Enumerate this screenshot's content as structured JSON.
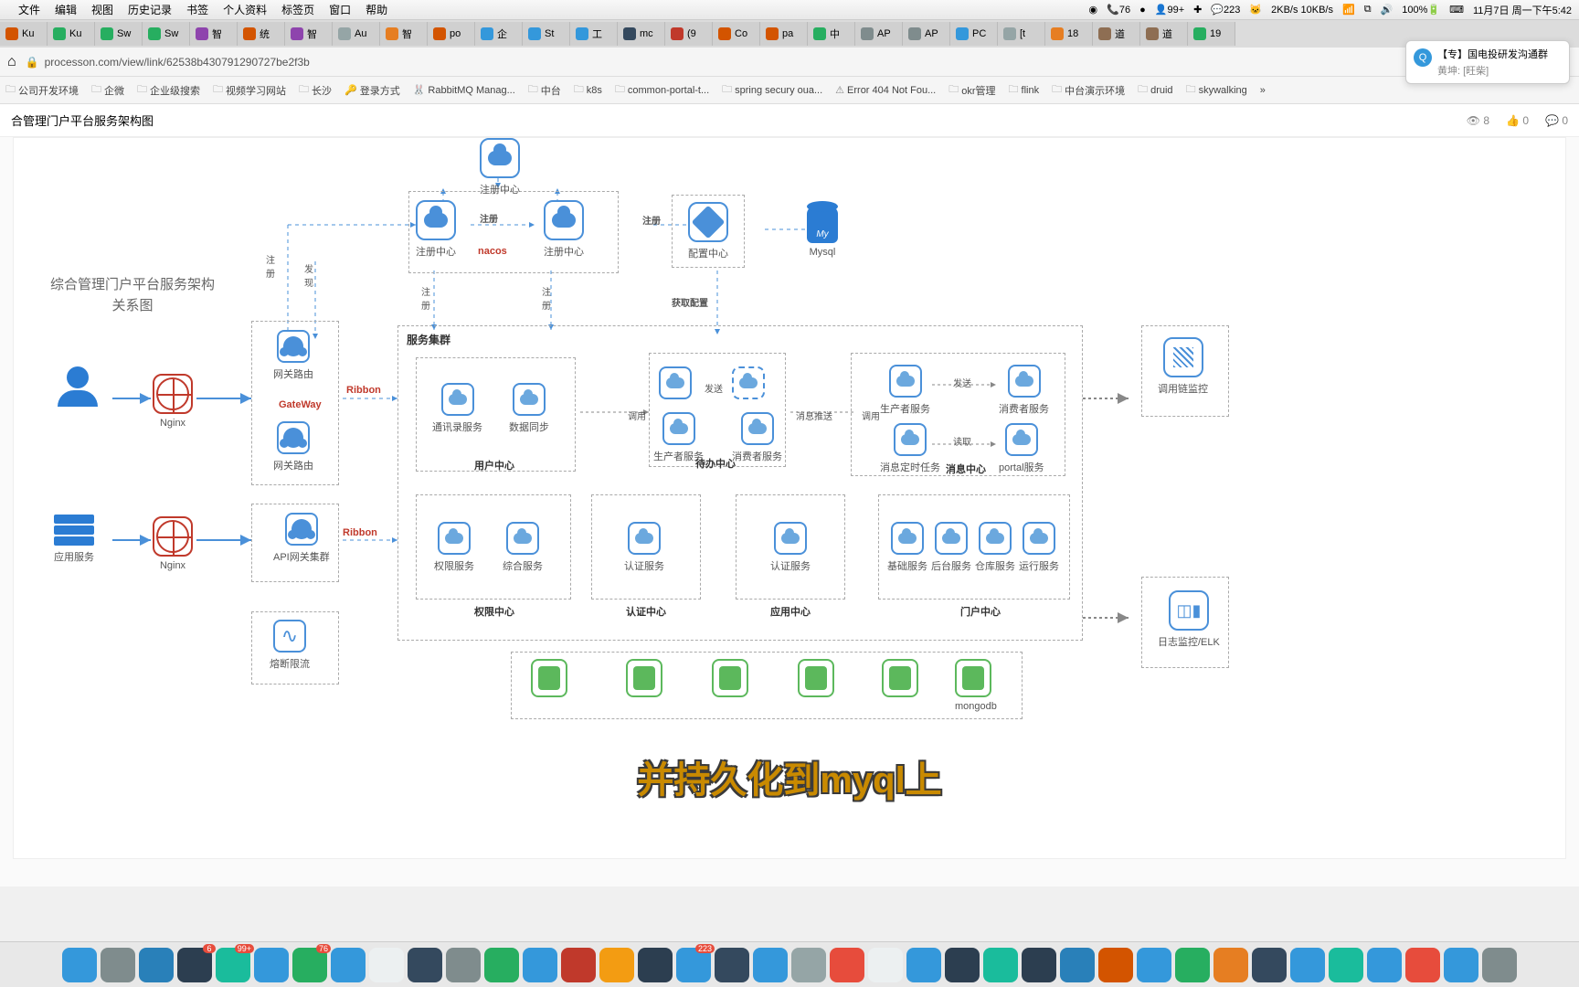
{
  "menubar": {
    "items": [
      "文件",
      "编辑",
      "视图",
      "历史记录",
      "书签",
      "个人资料",
      "标签页",
      "窗口",
      "帮助"
    ],
    "right": {
      "wifi_speed": "2KB/s 10KB/s",
      "battery": "100%",
      "time": "11月7日 周一下午5:42",
      "badge1": "76",
      "badge2": "99+",
      "badge3": "223"
    }
  },
  "tabs": [
    {
      "label": "Ku",
      "color": "#d35400"
    },
    {
      "label": "Ku",
      "color": "#27ae60"
    },
    {
      "label": "Sw",
      "color": "#27ae60"
    },
    {
      "label": "Sw",
      "color": "#27ae60"
    },
    {
      "label": "智",
      "color": "#8e44ad"
    },
    {
      "label": "统",
      "color": "#d35400"
    },
    {
      "label": "智",
      "color": "#8e44ad"
    },
    {
      "label": "Au",
      "color": "#95a5a6"
    },
    {
      "label": "智",
      "color": "#e67e22"
    },
    {
      "label": "po",
      "color": "#d35400"
    },
    {
      "label": "企",
      "color": "#3498db"
    },
    {
      "label": "St",
      "color": "#3498db"
    },
    {
      "label": "工",
      "color": "#3498db"
    },
    {
      "label": "mc",
      "color": "#34495e"
    },
    {
      "label": "(9",
      "color": "#c0392b"
    },
    {
      "label": "Co",
      "color": "#d35400"
    },
    {
      "label": "pa",
      "color": "#d35400"
    },
    {
      "label": "中",
      "color": "#27ae60"
    },
    {
      "label": "AP",
      "color": "#7f8c8d"
    },
    {
      "label": "AP",
      "color": "#7f8c8d"
    },
    {
      "label": "PC",
      "color": "#3498db"
    },
    {
      "label": "[t",
      "color": "#95a5a6"
    },
    {
      "label": "18",
      "color": "#e67e22"
    },
    {
      "label": "道",
      "color": "#8e6e53"
    },
    {
      "label": "道",
      "color": "#8e6e53"
    },
    {
      "label": "19",
      "color": "#27ae60"
    }
  ],
  "url": "processon.com/view/link/62538b430791290727be2f3b",
  "popup": {
    "line1": "【专】国电投研发沟通群",
    "line2": "黄坤: [旺柴]"
  },
  "bookmarks": [
    "公司开发环境",
    "企微",
    "企业级搜索",
    "视频学习网站",
    "长沙",
    "登录方式",
    "RabbitMQ Manag...",
    "中台",
    "k8s",
    "common-portal-t...",
    "spring secury oua...",
    "Error 404 Not Fou...",
    "okr管理",
    "flink",
    "中台演示环境",
    "druid",
    "skywalking"
  ],
  "page": {
    "title": "合管理门户平台服务架构图",
    "views": "8",
    "likes": "0",
    "comments": "0"
  },
  "diagram": {
    "left_title": "综合管理门户平台服务架构关系图",
    "nodes": {
      "regc_top": "注册中心",
      "regc1": "注册中心",
      "regc2": "注册中心",
      "nacos": "nacos",
      "cfg": "配置中心",
      "mysql": "Mysql",
      "nginx1": "Nginx",
      "nginx2": "Nginx",
      "gw_route1": "网关路由",
      "gw_route2": "网关路由",
      "gateway": "GateWay",
      "ribbon": "Ribbon",
      "ribbon2": "Ribbon",
      "api_gw": "API网关集群",
      "app_svc": "应用服务",
      "cluster": "服务集群",
      "user_center": "用户中心",
      "contact": "通讯录服务",
      "datasync": "数据同步",
      "todo": "待办中心",
      "prod_svc": "生产者服务",
      "cons_svc": "消费者服务",
      "msg_center": "消息中心",
      "prod_svc2": "生产者服务",
      "cons_svc2": "消费者服务",
      "msg_task": "消息定时任务",
      "portal_svc": "portal服务",
      "perm_center": "权限中心",
      "perm_svc": "权限服务",
      "comp_svc": "综合服务",
      "auth_center": "认证中心",
      "auth_svc": "认证服务",
      "app_center": "应用中心",
      "auth_svc2": "认证服务",
      "portal_center": "门户中心",
      "base_svc": "基础服务",
      "backend_svc": "后台服务",
      "store_svc": "仓库服务",
      "run_svc": "运行服务",
      "circuit": "熔断限流",
      "call_chain": "调用链监控",
      "elk": "日志监控/ELK",
      "mongodb": "mongodb"
    },
    "edge_labels": {
      "reg": "注册",
      "reg_v": "注\n册",
      "discover": "发\n现",
      "get_cfg": "获取配置",
      "call": "调用",
      "send": "发送",
      "read": "读取",
      "msg_push": "消息推送",
      "invoke": "调用"
    },
    "colors": {
      "node_border": "#4a90d9",
      "dash_border": "#aaaaaa",
      "red": "#c0392b",
      "green": "#5cb85c",
      "blue_fill": "#2b7cd3",
      "bg": "#ffffff"
    }
  },
  "caption": "并持久化到myql上",
  "dock": [
    {
      "color": "#3498db"
    },
    {
      "color": "#7f8c8d"
    },
    {
      "color": "#2980b9"
    },
    {
      "color": "#2c3e50",
      "badge": "6"
    },
    {
      "color": "#1abc9c",
      "badge": "99+"
    },
    {
      "color": "#3498db"
    },
    {
      "color": "#27ae60",
      "badge": "76"
    },
    {
      "color": "#3498db"
    },
    {
      "color": "#ecf0f1"
    },
    {
      "color": "#34495e"
    },
    {
      "color": "#7f8c8d"
    },
    {
      "color": "#27ae60"
    },
    {
      "color": "#3498db"
    },
    {
      "color": "#c0392b"
    },
    {
      "color": "#f39c12"
    },
    {
      "color": "#2c3e50"
    },
    {
      "color": "#3498db",
      "badge": "223"
    },
    {
      "color": "#34495e"
    },
    {
      "color": "#3498db"
    },
    {
      "color": "#95a5a6"
    },
    {
      "color": "#e74c3c"
    },
    {
      "color": "#ecf0f1"
    },
    {
      "color": "#3498db"
    },
    {
      "color": "#2c3e50"
    },
    {
      "color": "#1abc9c"
    },
    {
      "color": "#2c3e50"
    },
    {
      "color": "#2980b9"
    },
    {
      "color": "#d35400"
    },
    {
      "color": "#3498db"
    },
    {
      "color": "#27ae60"
    },
    {
      "color": "#e67e22"
    },
    {
      "color": "#34495e"
    },
    {
      "color": "#3498db"
    },
    {
      "color": "#1abc9c"
    },
    {
      "color": "#3498db"
    },
    {
      "color": "#e74c3c"
    },
    {
      "color": "#3498db"
    },
    {
      "color": "#7f8c8d"
    }
  ]
}
